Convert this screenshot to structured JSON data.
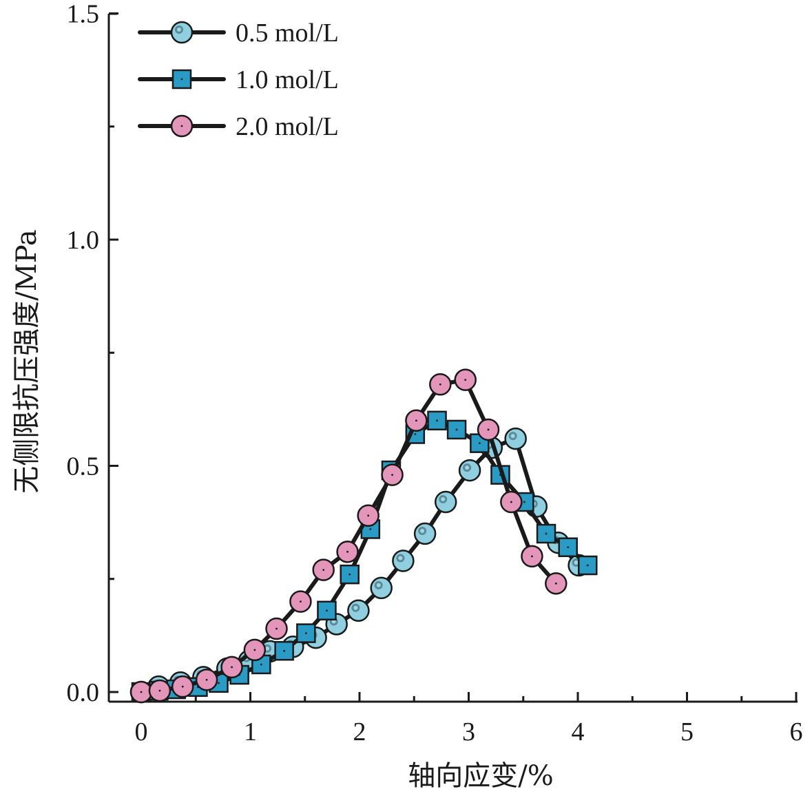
{
  "chart_data": {
    "type": "line",
    "title": "",
    "xlabel": "轴向应变/%",
    "ylabel": "无侧限抗压强度/MPa",
    "xlim": [
      -0.28,
      6
    ],
    "ylim": [
      -0.02,
      1.5
    ],
    "x_ticks": [
      0,
      1,
      2,
      3,
      4,
      5,
      6
    ],
    "x_tick_labels": [
      "0",
      "1",
      "2",
      "3",
      "4",
      "5",
      "6"
    ],
    "y_ticks": [
      0.0,
      0.5,
      1.0,
      1.5
    ],
    "y_tick_labels": [
      "0.0",
      "0.5",
      "1.0",
      "1.5"
    ],
    "grid": false,
    "legend_position": "top-left",
    "series": [
      {
        "name": "0.5 mol/L",
        "marker": "circle-highlight",
        "color": "#8FCFE0",
        "x": [
          0,
          0.16,
          0.36,
          0.57,
          0.79,
          0.99,
          1.18,
          1.39,
          1.6,
          1.79,
          1.99,
          2.2,
          2.4,
          2.6,
          2.79,
          3.01,
          3.21,
          3.43,
          3.62,
          3.82,
          4.01
        ],
        "y": [
          0,
          0.012,
          0.021,
          0.033,
          0.052,
          0.069,
          0.09,
          0.1,
          0.12,
          0.15,
          0.18,
          0.23,
          0.29,
          0.35,
          0.42,
          0.49,
          0.54,
          0.56,
          0.41,
          0.33,
          0.28
        ]
      },
      {
        "name": "1.0 mol/L",
        "marker": "square",
        "color": "#2A9BC4",
        "x": [
          0,
          0.16,
          0.32,
          0.52,
          0.71,
          0.9,
          1.1,
          1.31,
          1.51,
          1.7,
          1.91,
          2.1,
          2.29,
          2.51,
          2.71,
          2.89,
          3.1,
          3.29,
          3.51,
          3.71,
          3.91,
          4.09
        ],
        "y": [
          0,
          0.003,
          0.006,
          0.011,
          0.02,
          0.038,
          0.061,
          0.091,
          0.13,
          0.18,
          0.26,
          0.36,
          0.49,
          0.57,
          0.6,
          0.58,
          0.55,
          0.48,
          0.42,
          0.35,
          0.32,
          0.28
        ]
      },
      {
        "name": "2.0 mol/L",
        "marker": "circle",
        "color": "#E495BA",
        "x": [
          0,
          0.17,
          0.38,
          0.6,
          0.83,
          1.04,
          1.24,
          1.46,
          1.67,
          1.89,
          2.08,
          2.3,
          2.52,
          2.74,
          2.97,
          3.18,
          3.39,
          3.58,
          3.8
        ],
        "y": [
          0,
          0.003,
          0.012,
          0.027,
          0.055,
          0.093,
          0.14,
          0.2,
          0.27,
          0.31,
          0.39,
          0.48,
          0.6,
          0.68,
          0.69,
          0.58,
          0.42,
          0.3,
          0.24
        ]
      }
    ]
  }
}
